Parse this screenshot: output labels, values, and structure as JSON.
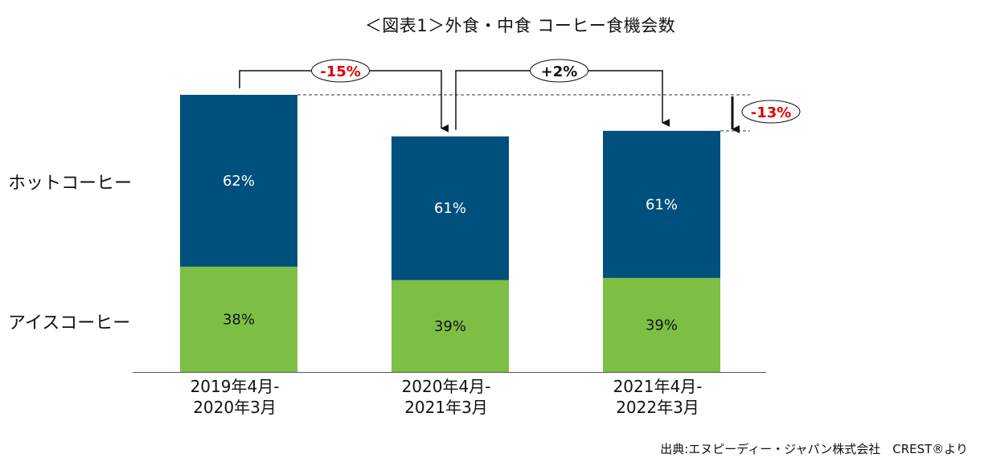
{
  "title": "＜図表1＞外食・中食 コーヒー食機会数",
  "source": "出典:エヌピーディー・ジャパン株式会社　CREST®より",
  "chart_data": {
    "type": "bar",
    "stacked": true,
    "categories": [
      [
        "2019年4月-",
        "2020年3月"
      ],
      [
        "2020年4月-",
        "2021年3月"
      ],
      [
        "2021年4月-",
        "2022年3月"
      ]
    ],
    "totals_index": [
      100,
      85,
      87
    ],
    "series": [
      {
        "name": "アイスコーヒー",
        "values": [
          38,
          39,
          39
        ],
        "labels": [
          "38%",
          "39%",
          "39%"
        ],
        "color": "#7cbf44"
      },
      {
        "name": "ホットコーヒー",
        "values": [
          62,
          61,
          61
        ],
        "labels": [
          "62%",
          "61%",
          "61%"
        ],
        "color": "#00507d"
      }
    ],
    "changes": [
      {
        "from": 0,
        "to": 1,
        "label": "-15%",
        "color": "#e00000"
      },
      {
        "from": 1,
        "to": 2,
        "label": "+2%",
        "color": "#111111"
      },
      {
        "from": 0,
        "to": 2,
        "label": "-13%",
        "color": "#e00000"
      }
    ],
    "grid": false,
    "legend": "left"
  }
}
